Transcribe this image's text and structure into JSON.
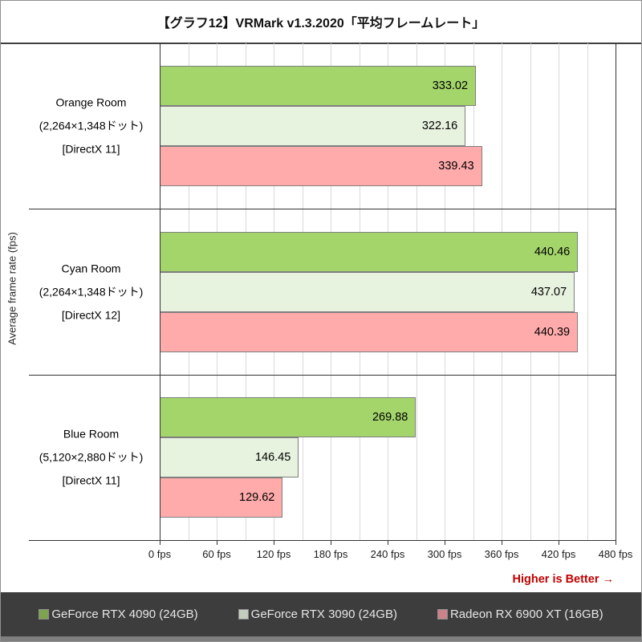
{
  "title": "【グラフ12】VRMark v1.3.2020「平均フレームレート」",
  "footer": {
    "higher_is_better": "Higher is Better →"
  },
  "chart_data": {
    "type": "bar",
    "orientation": "horizontal",
    "title": "【グラフ12】VRMark v1.3.2020「平均フレームレート」",
    "ylabel": "Average frame rate (fps)",
    "xlim": [
      0,
      480
    ],
    "major_step": 60,
    "minor_step": 30,
    "grid": true,
    "legend_position": "bottom",
    "x_tick_labels": [
      "0 fps",
      "60 fps",
      "120 fps",
      "180 fps",
      "240 fps",
      "300 fps",
      "360 fps",
      "420 fps",
      "480 fps"
    ],
    "categories": [
      {
        "lines": [
          "Orange Room",
          "(2,264×1,348ドット)",
          "[DirectX 11]"
        ]
      },
      {
        "lines": [
          "Cyan Room",
          "(2,264×1,348ドット)",
          "[DirectX 12]"
        ]
      },
      {
        "lines": [
          "Blue Room",
          "(5,120×2,880ドット)",
          "[DirectX 11]"
        ]
      }
    ],
    "series": [
      {
        "name": "GeForce RTX 4090 (24GB)",
        "color": "#a3d56b",
        "legend_chip_color": "#7da34e",
        "values": [
          333.02,
          440.46,
          269.88
        ]
      },
      {
        "name": "GeForce RTX 3090 (24GB)",
        "color": "#e7f2df",
        "legend_chip_color": "#c3cdbe",
        "values": [
          322.16,
          437.07,
          146.45
        ]
      },
      {
        "name": "Radeon RX 6900 XT (16GB)",
        "color": "#ffabab",
        "legend_chip_color": "#cb8289",
        "values": [
          339.43,
          440.39,
          129.62
        ]
      }
    ],
    "colors": {
      "bar_border": "#7f7f7f",
      "gridline": "#d9d9d9",
      "axis": "#333333",
      "note_red": "#c00000",
      "legend_background": "#3d3d3d",
      "legend_text": "#e6e6e6"
    }
  }
}
